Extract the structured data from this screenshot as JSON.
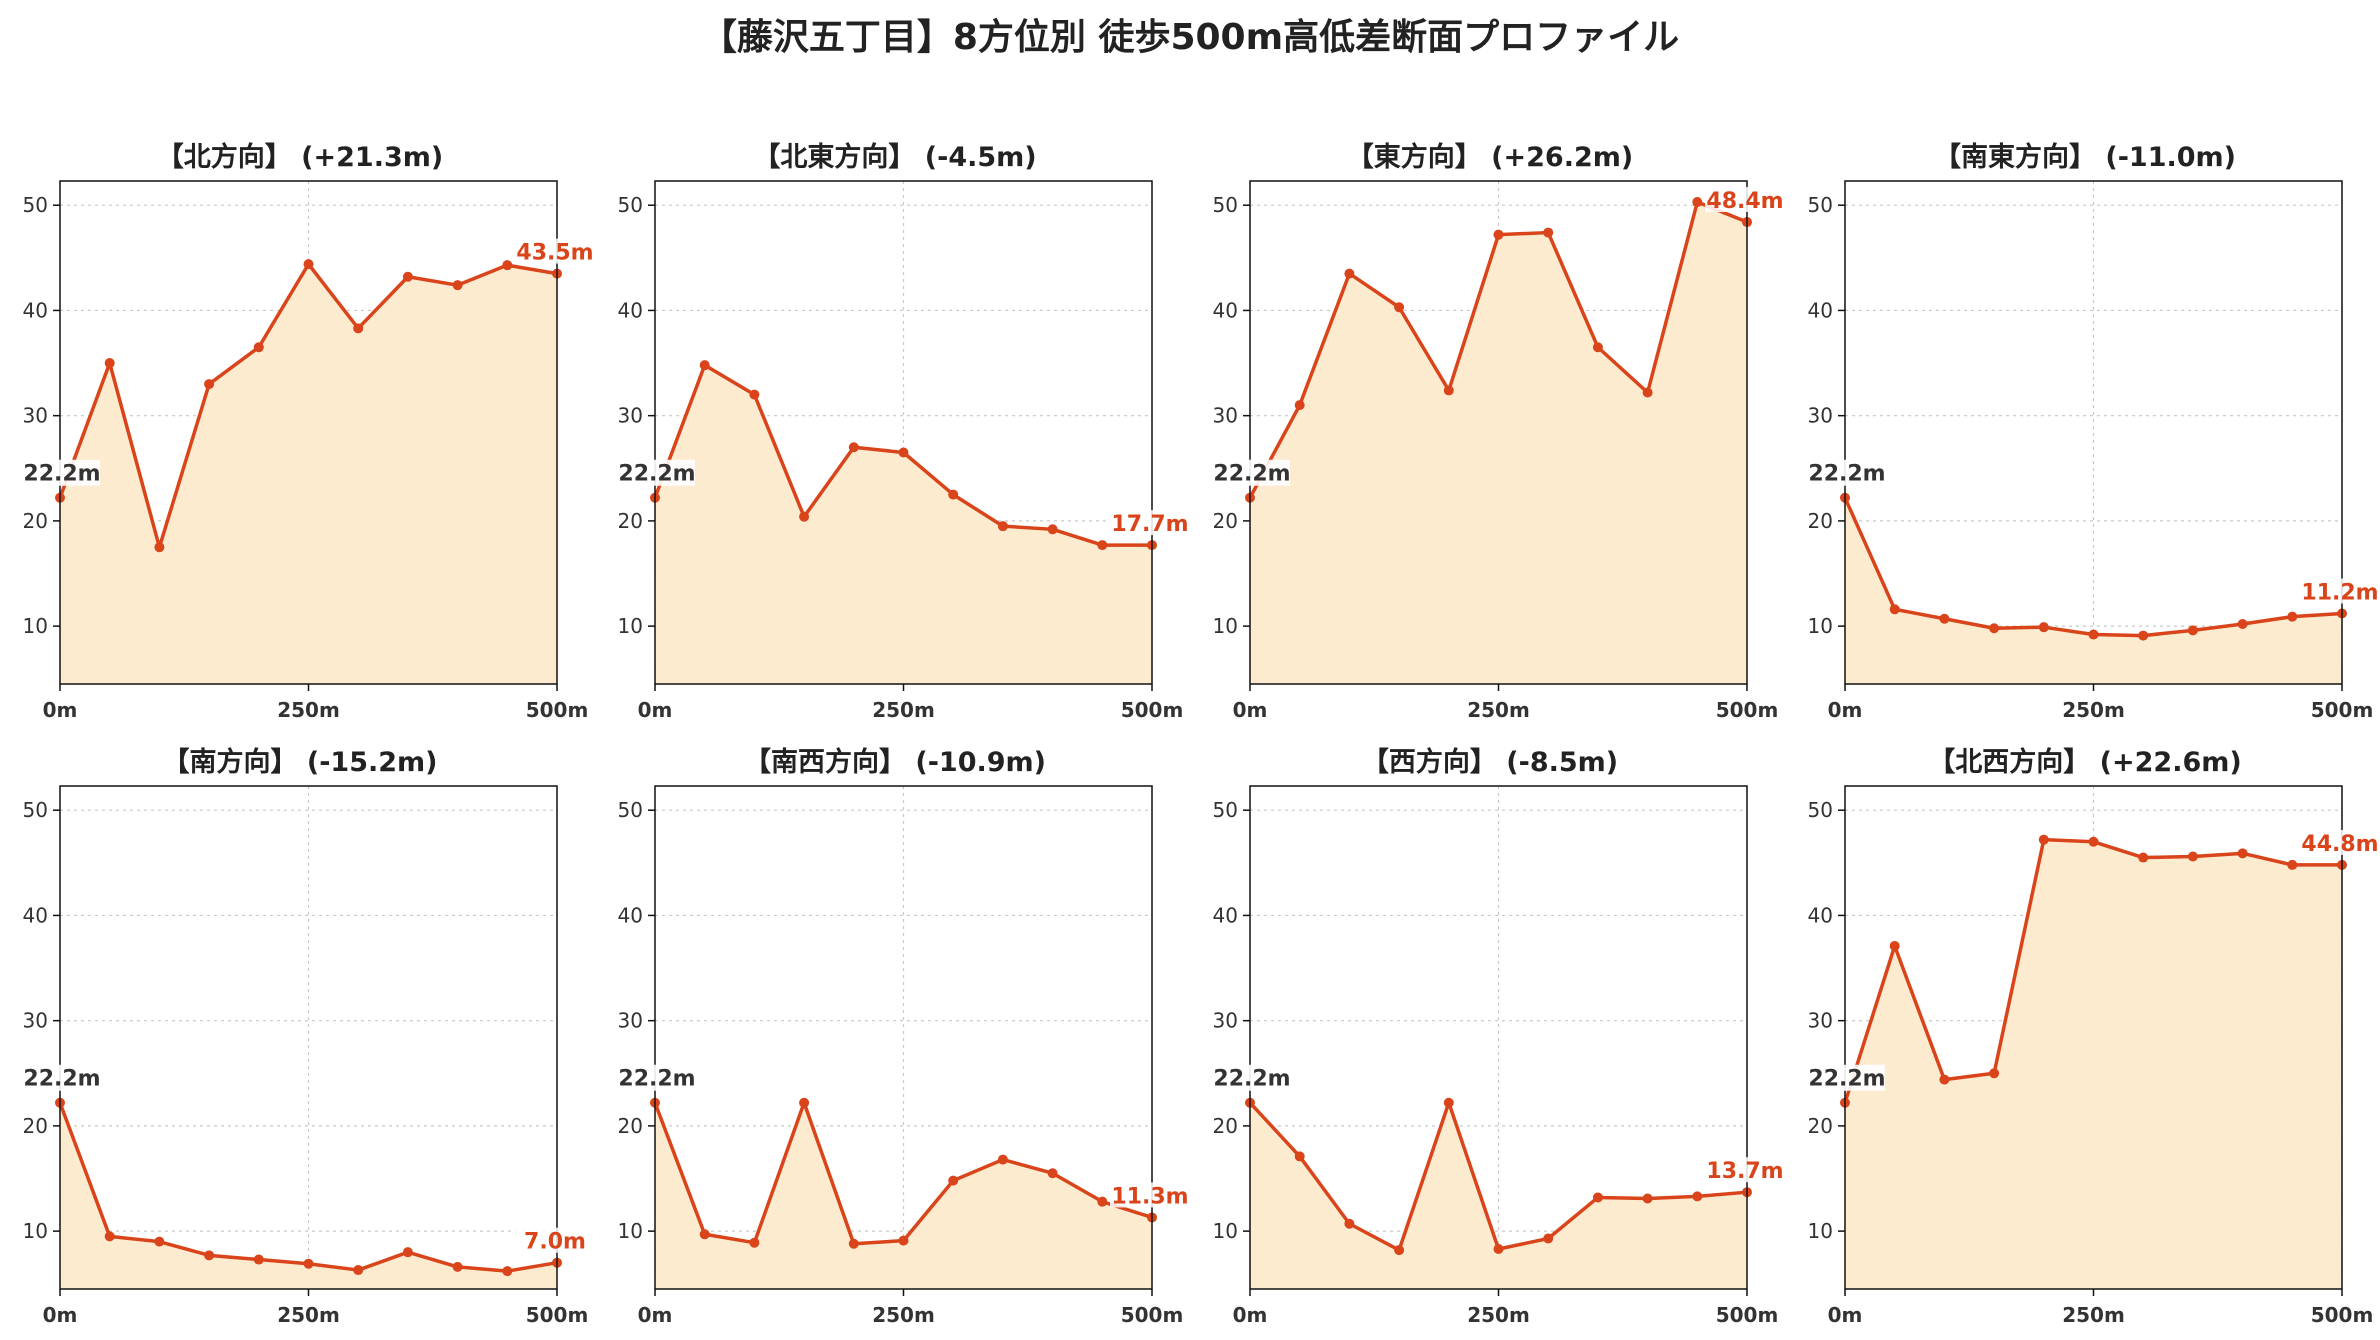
{
  "title": "【藤沢五丁目】8方位別 徒歩500m高低差断面プロファイル",
  "colors": {
    "line": "#d9441a",
    "fill": "#fdebd0",
    "grid": "#c8c8c8",
    "start_label": "#333333"
  },
  "chart_data": [
    {
      "type": "area",
      "title": "【北方向】 (+21.3m)",
      "x": [
        0,
        50,
        100,
        150,
        200,
        250,
        300,
        350,
        400,
        450,
        500
      ],
      "values": [
        22.2,
        35.0,
        17.5,
        33.0,
        36.5,
        44.4,
        38.3,
        43.2,
        42.4,
        44.3,
        43.5
      ],
      "start_label": "22.2m",
      "end_label": "43.5m",
      "xticks": [
        "0m",
        "250m",
        "500m"
      ],
      "yticks": [
        "10",
        "20",
        "30",
        "40",
        "50"
      ],
      "xlim": [
        0,
        500
      ],
      "ylim": [
        4.5,
        52.3
      ],
      "grid": true
    },
    {
      "type": "area",
      "title": "【北東方向】 (-4.5m)",
      "x": [
        0,
        50,
        100,
        150,
        200,
        250,
        300,
        350,
        400,
        450,
        500
      ],
      "values": [
        22.2,
        34.8,
        32.0,
        20.4,
        27.0,
        26.5,
        22.5,
        19.5,
        19.2,
        17.7,
        17.7
      ],
      "start_label": "22.2m",
      "end_label": "17.7m",
      "xticks": [
        "0m",
        "250m",
        "500m"
      ],
      "yticks": [
        "10",
        "20",
        "30",
        "40",
        "50"
      ],
      "xlim": [
        0,
        500
      ],
      "ylim": [
        4.5,
        52.3
      ],
      "grid": true
    },
    {
      "type": "area",
      "title": "【東方向】 (+26.2m)",
      "x": [
        0,
        50,
        100,
        150,
        200,
        250,
        300,
        350,
        400,
        450,
        500
      ],
      "values": [
        22.2,
        31.0,
        43.5,
        40.3,
        32.4,
        47.2,
        47.4,
        36.5,
        32.2,
        50.3,
        48.4
      ],
      "start_label": "22.2m",
      "end_label": "48.4m",
      "xticks": [
        "0m",
        "250m",
        "500m"
      ],
      "yticks": [
        "10",
        "20",
        "30",
        "40",
        "50"
      ],
      "xlim": [
        0,
        500
      ],
      "ylim": [
        4.5,
        52.3
      ],
      "grid": true
    },
    {
      "type": "area",
      "title": "【南東方向】 (-11.0m)",
      "x": [
        0,
        50,
        100,
        150,
        200,
        250,
        300,
        350,
        400,
        450,
        500
      ],
      "values": [
        22.2,
        11.6,
        10.7,
        9.8,
        9.9,
        9.2,
        9.1,
        9.6,
        10.2,
        10.9,
        11.2
      ],
      "start_label": "22.2m",
      "end_label": "11.2m",
      "xticks": [
        "0m",
        "250m",
        "500m"
      ],
      "yticks": [
        "10",
        "20",
        "30",
        "40",
        "50"
      ],
      "xlim": [
        0,
        500
      ],
      "ylim": [
        4.5,
        52.3
      ],
      "grid": true
    },
    {
      "type": "area",
      "title": "【南方向】 (-15.2m)",
      "x": [
        0,
        50,
        100,
        150,
        200,
        250,
        300,
        350,
        400,
        450,
        500
      ],
      "values": [
        22.2,
        9.5,
        9.0,
        7.7,
        7.3,
        6.9,
        6.3,
        8.0,
        6.6,
        6.2,
        7.0
      ],
      "start_label": "22.2m",
      "end_label": "7.0m",
      "xticks": [
        "0m",
        "250m",
        "500m"
      ],
      "yticks": [
        "10",
        "20",
        "30",
        "40",
        "50"
      ],
      "xlim": [
        0,
        500
      ],
      "ylim": [
        4.5,
        52.3
      ],
      "grid": true
    },
    {
      "type": "area",
      "title": "【南西方向】 (-10.9m)",
      "x": [
        0,
        50,
        100,
        150,
        200,
        250,
        300,
        350,
        400,
        450,
        500
      ],
      "values": [
        22.2,
        9.7,
        8.9,
        22.2,
        8.8,
        9.1,
        14.8,
        16.8,
        15.5,
        12.8,
        11.3
      ],
      "start_label": "22.2m",
      "end_label": "11.3m",
      "xticks": [
        "0m",
        "250m",
        "500m"
      ],
      "yticks": [
        "10",
        "20",
        "30",
        "40",
        "50"
      ],
      "xlim": [
        0,
        500
      ],
      "ylim": [
        4.5,
        52.3
      ],
      "grid": true
    },
    {
      "type": "area",
      "title": "【西方向】 (-8.5m)",
      "x": [
        0,
        50,
        100,
        150,
        200,
        250,
        300,
        350,
        400,
        450,
        500
      ],
      "values": [
        22.2,
        17.1,
        10.7,
        8.2,
        22.2,
        8.3,
        9.3,
        13.2,
        13.1,
        13.3,
        13.7
      ],
      "start_label": "22.2m",
      "end_label": "13.7m",
      "xticks": [
        "0m",
        "250m",
        "500m"
      ],
      "yticks": [
        "10",
        "20",
        "30",
        "40",
        "50"
      ],
      "xlim": [
        0,
        500
      ],
      "ylim": [
        4.5,
        52.3
      ],
      "grid": true
    },
    {
      "type": "area",
      "title": "【北西方向】 (+22.6m)",
      "x": [
        0,
        50,
        100,
        150,
        200,
        250,
        300,
        350,
        400,
        450,
        500
      ],
      "values": [
        22.2,
        37.1,
        24.4,
        25.0,
        47.2,
        47.0,
        45.5,
        45.6,
        45.9,
        44.8,
        44.8
      ],
      "start_label": "22.2m",
      "end_label": "44.8m",
      "xticks": [
        "0m",
        "250m",
        "500m"
      ],
      "yticks": [
        "10",
        "20",
        "30",
        "40",
        "50"
      ],
      "xlim": [
        0,
        500
      ],
      "ylim": [
        4.5,
        52.3
      ],
      "grid": true
    }
  ]
}
